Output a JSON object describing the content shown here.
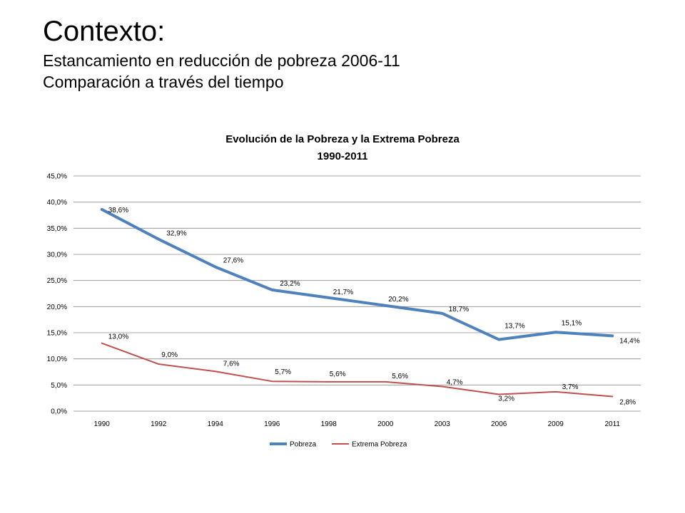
{
  "slide": {
    "title": "Contexto:",
    "subtitle_line1": "Estancamiento en reducción de pobreza 2006-11",
    "subtitle_line2": "Comparación a través del tiempo"
  },
  "chart_data": {
    "type": "line",
    "title": "Evolución de la Pobreza y la Extrema Pobreza",
    "subtitle": "1990-2011",
    "xlabel": "",
    "ylabel": "",
    "categories": [
      "1990",
      "1992",
      "1994",
      "1996",
      "1998",
      "2000",
      "2003",
      "2006",
      "2009",
      "2011"
    ],
    "ylim": [
      0,
      45
    ],
    "yticks": [
      0,
      5,
      10,
      15,
      20,
      25,
      30,
      35,
      40,
      45
    ],
    "ytick_labels": [
      "0,0%",
      "5,0%",
      "10,0%",
      "15,0%",
      "20,0%",
      "25,0%",
      "30,0%",
      "35,0%",
      "40,0%",
      "45,0%"
    ],
    "grid": true,
    "legend_position": "bottom",
    "series": [
      {
        "name": "Pobreza",
        "color": "#4F81BD",
        "values": [
          38.6,
          32.9,
          27.6,
          23.2,
          21.7,
          20.2,
          18.7,
          13.7,
          15.1,
          14.4
        ],
        "labels": [
          "38,6%",
          "32,9%",
          "27,6%",
          "23,2%",
          "21,7%",
          "20,2%",
          "18,7%",
          "13,7%",
          "15,1%",
          "14,4%"
        ]
      },
      {
        "name": "Extrema Pobreza",
        "color": "#C0504D",
        "values": [
          13.0,
          9.0,
          7.6,
          5.7,
          5.6,
          5.6,
          4.7,
          3.2,
          3.7,
          2.8
        ],
        "labels": [
          "13,0%",
          "9,0%",
          "7,6%",
          "5,7%",
          "5,6%",
          "5,6%",
          "4,7%",
          "3,2%",
          "3,7%",
          "2,8%"
        ]
      }
    ]
  }
}
